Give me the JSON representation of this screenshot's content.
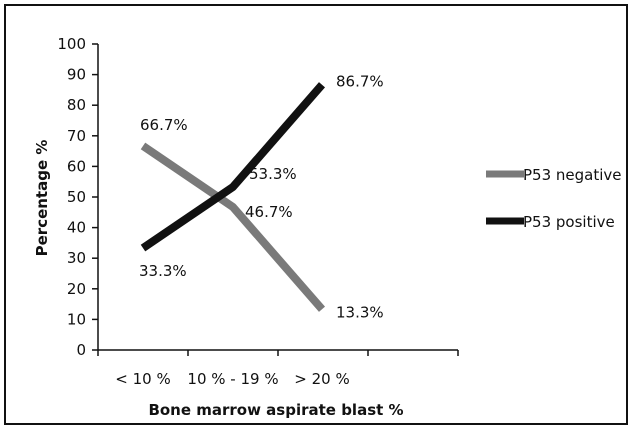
{
  "chart_data": {
    "type": "line",
    "title": "",
    "xlabel": "Bone marrow aspirate blast %",
    "ylabel": "Percentage %",
    "categories": [
      "< 10 %",
      "10 % - 19 %",
      "> 20 %"
    ],
    "ylim": [
      0,
      100
    ],
    "yticks": [
      "0",
      "10",
      "20",
      "30",
      "40",
      "50",
      "60",
      "70",
      "80",
      "90",
      "100"
    ],
    "grid": false,
    "legend_position": "right",
    "series": [
      {
        "name": "P53 negative",
        "values": [
          66.7,
          46.7,
          13.3
        ],
        "labels": [
          "66.7%",
          "46.7%",
          "13.3%"
        ],
        "color": "#7a7a7a"
      },
      {
        "name": "P53 positive",
        "values": [
          33.3,
          53.3,
          86.7
        ],
        "labels": [
          "33.3%",
          "53.3%",
          "86.7%"
        ],
        "color": "#111111"
      }
    ]
  }
}
